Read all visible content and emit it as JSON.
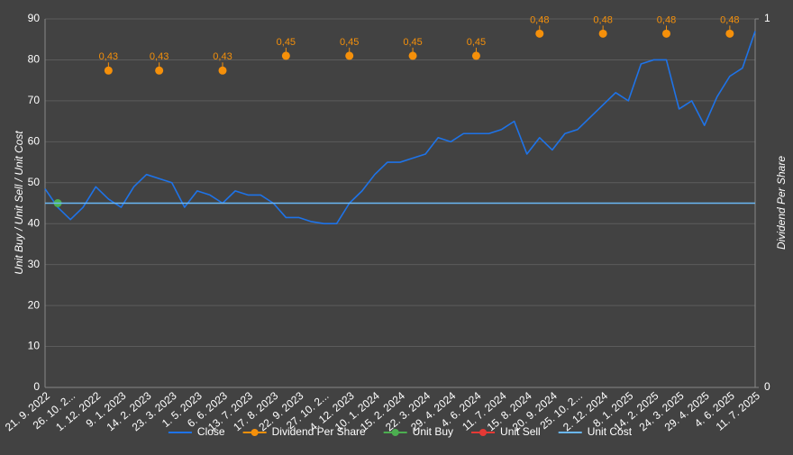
{
  "chart_data": {
    "type": "line",
    "y_label": "Unit Buy / Unit Sell / Unit Cost",
    "y2_label": "Dividend Per Share",
    "categories": [
      "21. 9. 2022",
      null,
      "26. 10. 2...",
      null,
      "1. 12. 2022",
      null,
      "9. 1. 2023",
      null,
      "14. 2. 2023",
      null,
      "23. 3. 2023",
      null,
      "1. 5. 2023",
      null,
      "6. 6. 2023",
      null,
      "13. 7. 2023",
      null,
      "17. 8. 2023",
      null,
      "22. 9. 2023",
      null,
      "27. 10. 2...",
      null,
      "4. 12. 2023",
      null,
      "10. 1. 2024",
      null,
      "15. 2. 2024",
      null,
      "22. 3. 2024",
      null,
      "29. 4. 2024",
      null,
      "4. 6. 2024",
      null,
      "11. 7. 2024",
      null,
      "15. 8. 2024",
      null,
      "20. 9. 2024",
      null,
      "25. 10. 2...",
      null,
      "2. 12. 2024",
      null,
      "8. 1. 2025",
      null,
      "14. 2. 2025",
      null,
      "24. 3. 2025",
      null,
      "29. 4. 2025",
      null,
      "4. 6. 2025",
      null,
      "11. 7. 2025"
    ],
    "ylim": [
      0,
      90
    ],
    "yticks": [
      0,
      10,
      20,
      30,
      40,
      50,
      60,
      70,
      80,
      90
    ],
    "y2lim": [
      0,
      0.5
    ],
    "y2ticks": [
      {
        "value": 0,
        "label": "0"
      },
      {
        "value": 0.5,
        "label": "1"
      }
    ],
    "grid": true,
    "legend": "bottom",
    "series": [
      {
        "name": "Close",
        "color": "#1e73e8",
        "style": "line",
        "values": [
          48.5,
          44,
          41,
          44,
          49,
          46,
          44,
          49,
          52,
          51,
          50,
          44,
          48,
          47,
          45,
          48,
          47,
          47,
          45,
          41.5,
          41.5,
          40.5,
          40,
          40,
          45,
          48,
          52,
          55,
          55,
          56,
          57,
          61,
          60,
          62,
          62,
          62,
          63,
          65,
          57,
          61,
          58,
          62,
          63,
          66,
          69,
          72,
          70,
          79,
          80,
          80,
          68,
          70,
          64,
          71,
          76,
          78,
          87
        ]
      },
      {
        "name": "Dividend Per Share",
        "color": "#f5900a",
        "style": "points",
        "axis": "y2",
        "values": [
          null,
          null,
          null,
          null,
          null,
          0.43,
          null,
          null,
          null,
          0.43,
          null,
          null,
          null,
          null,
          0.43,
          null,
          null,
          null,
          null,
          0.45,
          null,
          null,
          null,
          null,
          0.45,
          null,
          null,
          null,
          null,
          0.45,
          null,
          null,
          null,
          null,
          0.45,
          null,
          null,
          null,
          null,
          0.48,
          null,
          null,
          null,
          null,
          0.48,
          null,
          null,
          null,
          null,
          0.48,
          null,
          null,
          null,
          null,
          0.48,
          null,
          null
        ],
        "value_labels": [
          null,
          null,
          null,
          null,
          null,
          "0,43",
          null,
          null,
          null,
          "0,43",
          null,
          null,
          null,
          null,
          "0,43",
          null,
          null,
          null,
          null,
          "0,45",
          null,
          null,
          null,
          null,
          "0,45",
          null,
          null,
          null,
          null,
          "0,45",
          null,
          null,
          null,
          null,
          "0,45",
          null,
          null,
          null,
          null,
          "0,48",
          null,
          null,
          null,
          null,
          "0,48",
          null,
          null,
          null,
          null,
          "0,48",
          null,
          null,
          null,
          null,
          "0,48",
          null,
          null
        ]
      },
      {
        "name": "Unit Buy",
        "color": "#4caf50",
        "style": "points",
        "values": [
          null,
          45,
          null,
          null,
          null,
          null,
          null,
          null,
          null,
          null,
          null,
          null,
          null,
          null,
          null,
          null,
          null,
          null,
          null,
          null,
          null,
          null,
          null,
          null,
          null,
          null,
          null,
          null,
          null,
          null,
          null,
          null,
          null,
          null,
          null,
          null,
          null,
          null,
          null,
          null,
          null,
          null,
          null,
          null,
          null,
          null,
          null,
          null,
          null,
          null,
          null,
          null,
          null,
          null,
          null,
          null,
          null
        ]
      },
      {
        "name": "Unit Sell",
        "color": "#e53935",
        "style": "points",
        "values": [
          null,
          null,
          null,
          null,
          null,
          null,
          null,
          null,
          null,
          null,
          null,
          null,
          null,
          null,
          null,
          null,
          null,
          null,
          null,
          null,
          null,
          null,
          null,
          null,
          null,
          null,
          null,
          null,
          null,
          null,
          null,
          null,
          null,
          null,
          null,
          null,
          null,
          null,
          null,
          null,
          null,
          null,
          null,
          null,
          null,
          null,
          null,
          null,
          null,
          null,
          null,
          null,
          null,
          null,
          null,
          null,
          null
        ]
      },
      {
        "name": "Unit Cost",
        "color": "#6ab7f5",
        "style": "line",
        "values": [
          45,
          45,
          45,
          45,
          45,
          45,
          45,
          45,
          45,
          45,
          45,
          45,
          45,
          45,
          45,
          45,
          45,
          45,
          45,
          45,
          45,
          45,
          45,
          45,
          45,
          45,
          45,
          45,
          45,
          45,
          45,
          45,
          45,
          45,
          45,
          45,
          45,
          45,
          45,
          45,
          45,
          45,
          45,
          45,
          45,
          45,
          45,
          45,
          45,
          45,
          45,
          45,
          45,
          45,
          45,
          45,
          45
        ]
      }
    ]
  }
}
